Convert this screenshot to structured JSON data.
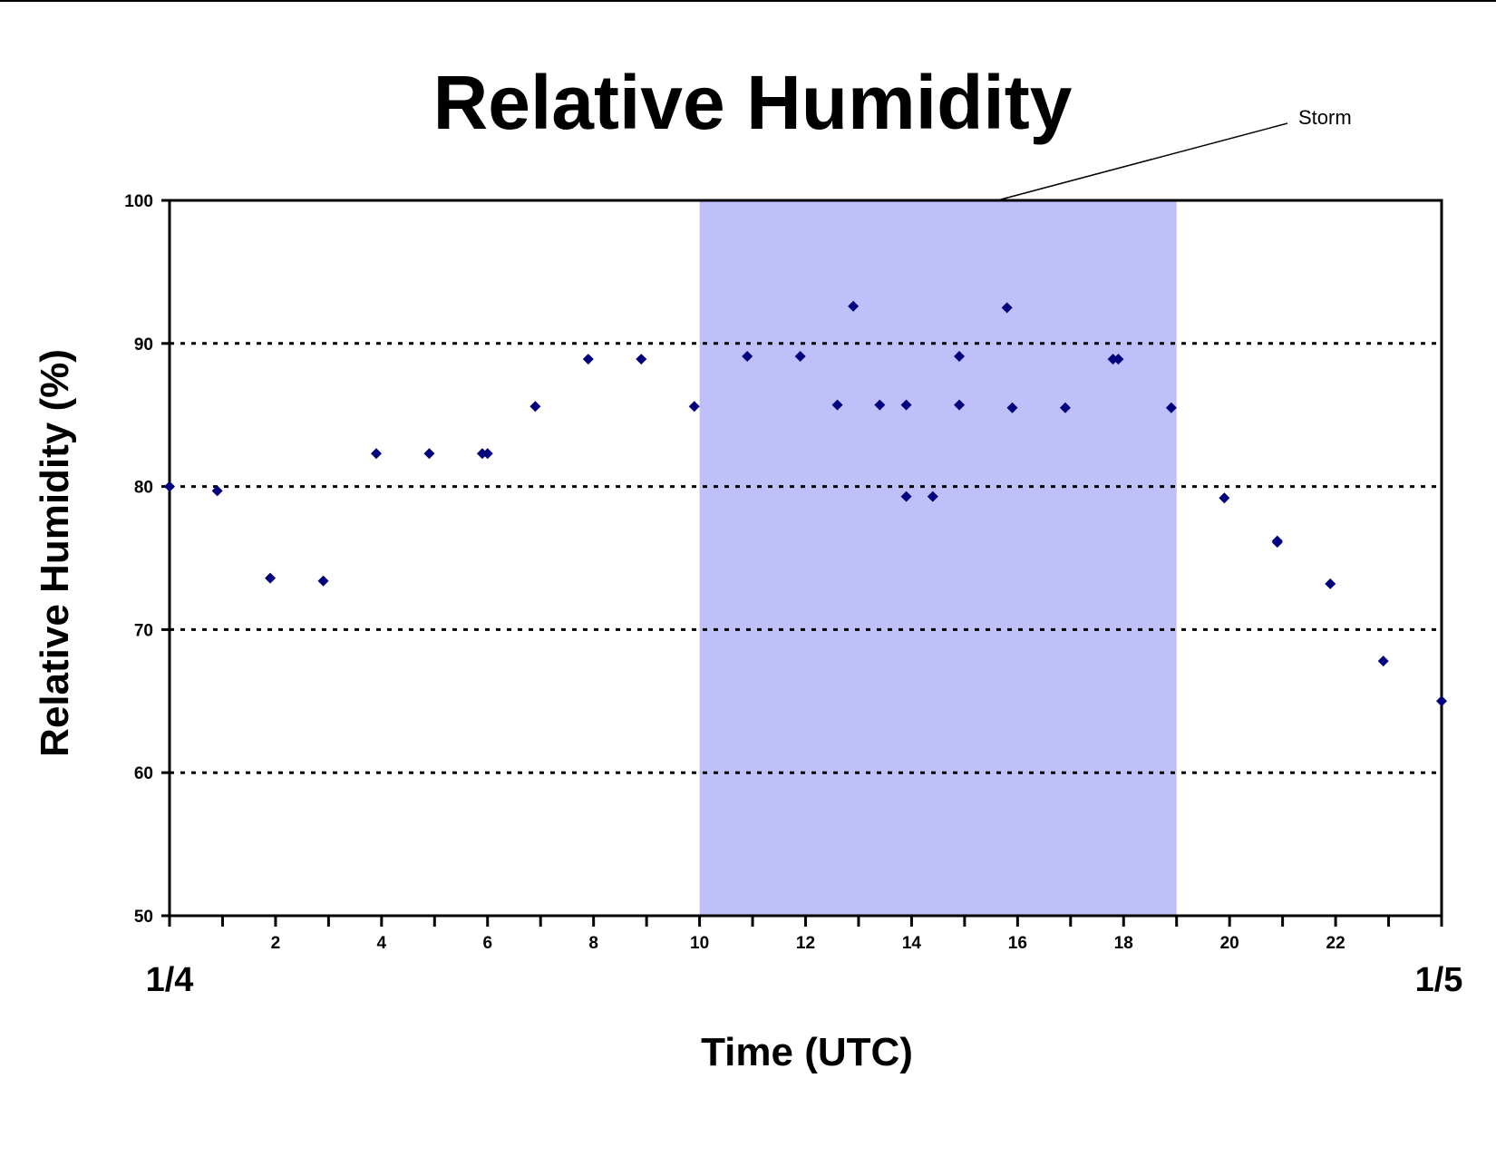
{
  "chart_data": {
    "type": "scatter",
    "title": "Relative Humidity",
    "xlabel": "Time (UTC)",
    "ylabel": "Relative Humidity (%)",
    "xlim": [
      0,
      24
    ],
    "ylim": [
      50,
      100
    ],
    "x_ticks": [
      2,
      4,
      6,
      8,
      10,
      12,
      14,
      16,
      18,
      20,
      22
    ],
    "y_ticks": [
      50,
      60,
      70,
      80,
      90,
      100
    ],
    "x_ticks_count": "every 2 hours (24 minor ticks)",
    "gridlines": [
      60,
      70,
      80,
      90
    ],
    "grid": "horizontal dotted",
    "date_labels": {
      "start": "1/4",
      "end": "1/5"
    },
    "highlight": {
      "label": "Storm",
      "x_start": 10,
      "x_end": 19,
      "color": "#bfbffa"
    },
    "marker_color": "#00007f",
    "series": [
      {
        "x": [
          0,
          0.9,
          1.9,
          2.9,
          3.9,
          4.9,
          5.9,
          6.0,
          6.9,
          7.9,
          8.9,
          9.9,
          10.9,
          11.9,
          12.6,
          12.9,
          13.4,
          13.9,
          13.9,
          14.4,
          14.9,
          14.9,
          15.8,
          15.9,
          16.9,
          17.8,
          17.9,
          18.9,
          19.9,
          20.9,
          20.9,
          21.9,
          22.9,
          24
        ],
        "y": [
          80,
          79.7,
          73.6,
          73.4,
          82.3,
          82.3,
          82.3,
          82.3,
          85.6,
          88.9,
          88.9,
          85.6,
          89.1,
          89.1,
          85.7,
          92.6,
          85.7,
          85.7,
          79.3,
          79.3,
          89.1,
          85.7,
          92.5,
          85.5,
          85.5,
          88.9,
          88.9,
          85.5,
          79.2,
          76.2,
          76.1,
          73.2,
          67.8,
          65
        ]
      }
    ]
  }
}
